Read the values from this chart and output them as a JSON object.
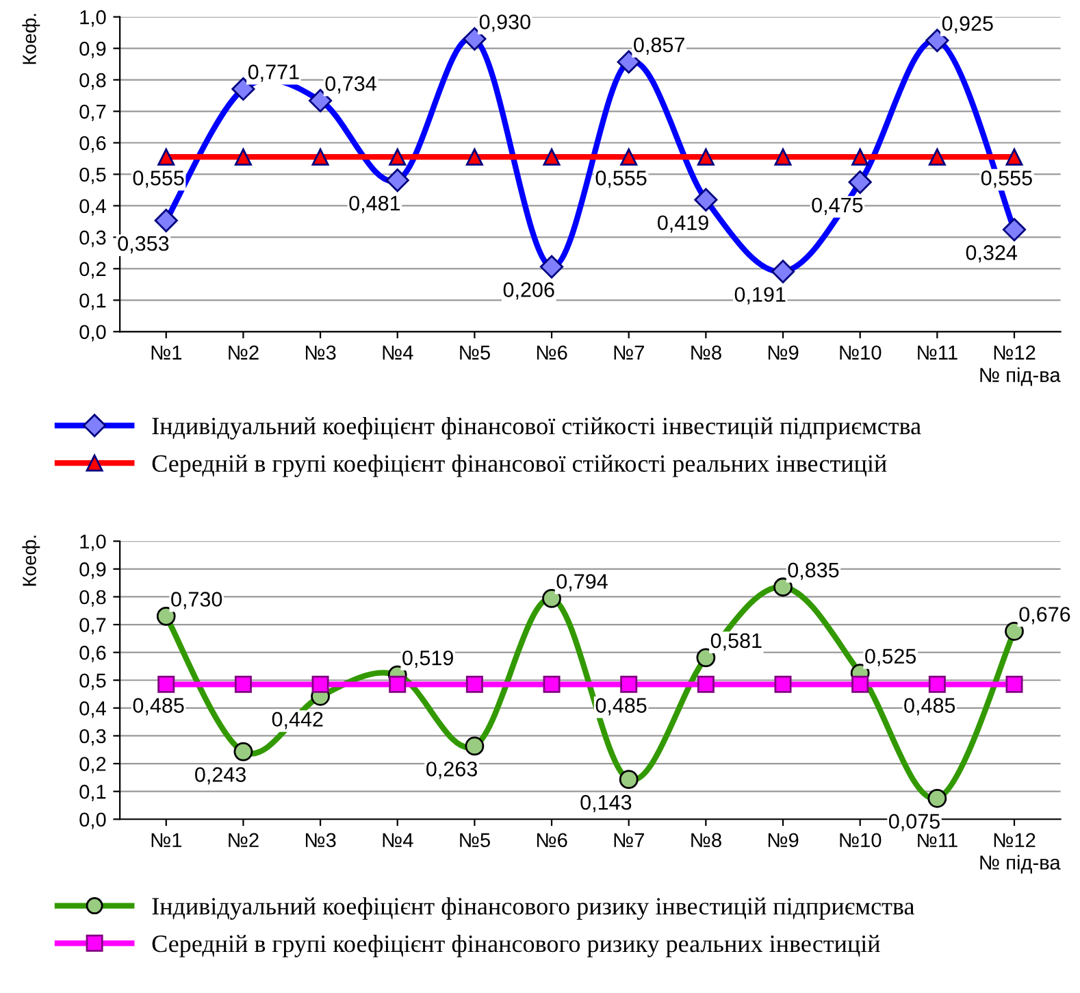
{
  "chart_data": [
    {
      "type": "line",
      "ylabel": "Коеф.",
      "xlabel": "№ під-ва",
      "categories": [
        "№1",
        "№2",
        "№3",
        "№4",
        "№5",
        "№6",
        "№7",
        "№8",
        "№9",
        "№10",
        "№11",
        "№12"
      ],
      "ylim": [
        0,
        1
      ],
      "yticks": [
        {
          "value": 0,
          "label": "0,0"
        },
        {
          "value": 0.1,
          "label": "0,1"
        },
        {
          "value": 0.2,
          "label": "0,2"
        },
        {
          "value": 0.3,
          "label": "0,3"
        },
        {
          "value": 0.4,
          "label": "0,4"
        },
        {
          "value": 0.5,
          "label": "0,5"
        },
        {
          "value": 0.6,
          "label": "0,6"
        },
        {
          "value": 0.7,
          "label": "0,7"
        },
        {
          "value": 0.8,
          "label": "0,8"
        },
        {
          "value": 0.9,
          "label": "0,9"
        },
        {
          "value": 1,
          "label": "1,0"
        }
      ],
      "grid": "y",
      "legend": "bottom",
      "series": [
        {
          "name": "Індивідуальний коефіцієнт фінансової стійкості інвестицій підприємства",
          "color": "#0000ff",
          "marker": "diamond",
          "values": [
            0.353,
            0.771,
            0.734,
            0.481,
            0.93,
            0.206,
            0.857,
            0.419,
            0.191,
            0.475,
            0.925,
            0.324
          ],
          "value_labels": [
            "0,353",
            "0,771",
            "0,734",
            "0,481",
            "0,930",
            "0,206",
            "0,857",
            "0,419",
            "0,191",
            "0,475",
            "0,925",
            "0,324"
          ]
        },
        {
          "name": "Середній в групі коефіцієнт фінансової стійкості реальних інвестицій",
          "color": "#ff0000",
          "marker": "triangle",
          "values": [
            0.555,
            0.555,
            0.555,
            0.555,
            0.555,
            0.555,
            0.555,
            0.555,
            0.555,
            0.555,
            0.555,
            0.555
          ],
          "value_labels": [
            "0,555",
            null,
            null,
            null,
            null,
            null,
            "0,555",
            null,
            null,
            null,
            null,
            "0,555"
          ]
        }
      ]
    },
    {
      "type": "line",
      "ylabel": "Коеф.",
      "xlabel": "№ під-ва",
      "categories": [
        "№1",
        "№2",
        "№3",
        "№4",
        "№5",
        "№6",
        "№7",
        "№8",
        "№9",
        "№10",
        "№11",
        "№12"
      ],
      "ylim": [
        0,
        1
      ],
      "yticks": [
        {
          "value": 0,
          "label": "0,0"
        },
        {
          "value": 0.1,
          "label": "0,1"
        },
        {
          "value": 0.2,
          "label": "0,2"
        },
        {
          "value": 0.3,
          "label": "0,3"
        },
        {
          "value": 0.4,
          "label": "0,4"
        },
        {
          "value": 0.5,
          "label": "0,5"
        },
        {
          "value": 0.6,
          "label": "0,6"
        },
        {
          "value": 0.7,
          "label": "0,7"
        },
        {
          "value": 0.8,
          "label": "0,8"
        },
        {
          "value": 0.9,
          "label": "0,9"
        },
        {
          "value": 1,
          "label": "1,0"
        }
      ],
      "grid": "y",
      "legend": "bottom",
      "series": [
        {
          "name": "Індивідуальний коефіцієнт фінансового ризику інвестицій підприємства",
          "color": "#339900",
          "marker": "circle",
          "values": [
            0.73,
            0.243,
            0.442,
            0.519,
            0.263,
            0.794,
            0.143,
            0.581,
            0.835,
            0.525,
            0.075,
            0.676
          ],
          "value_labels": [
            "0,730",
            "0,243",
            "0,442",
            "0,519",
            "0,263",
            "0,794",
            "0,143",
            "0,581",
            "0,835",
            "0,525",
            "0,075",
            "0,676"
          ]
        },
        {
          "name": "Середній в групі коефіцієнт фінансового ризику реальних інвестицій",
          "color": "#ff00ff",
          "marker": "square",
          "values": [
            0.485,
            0.485,
            0.485,
            0.485,
            0.485,
            0.485,
            0.485,
            0.485,
            0.485,
            0.485,
            0.485,
            0.485
          ],
          "value_labels": [
            "0,485",
            null,
            null,
            null,
            null,
            null,
            "0,485",
            null,
            null,
            null,
            "0,485",
            null
          ]
        }
      ]
    }
  ]
}
